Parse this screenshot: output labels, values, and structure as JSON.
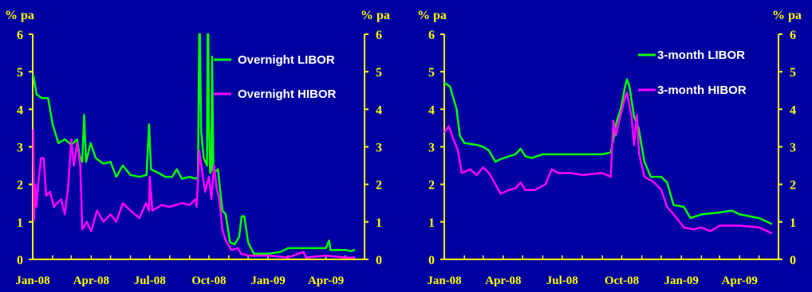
{
  "colors": {
    "background": "#0000a0",
    "axis": "#ffff00",
    "tick_label": "#ffff00",
    "libor": "#00ff00",
    "hibor": "#ff00ff",
    "legend_text": "#ffffff"
  },
  "chart_data": [
    {
      "type": "line",
      "title": "",
      "ylabel_left": "% pa",
      "ylabel_right": "% pa",
      "ylim": [
        0,
        6
      ],
      "yticks": [
        0,
        1,
        2,
        3,
        4,
        5,
        6
      ],
      "x_range": [
        "2008-01-01",
        "2009-05-31"
      ],
      "xtick_labels": [
        "Jan-08",
        "Apr-08",
        "Jul-08",
        "Oct-08",
        "Jan-09",
        "Apr-09"
      ],
      "xtick_dates": [
        "2008-01-01",
        "2008-04-01",
        "2008-07-01",
        "2008-10-01",
        "2009-01-01",
        "2009-04-01"
      ],
      "grid": false,
      "legend_placement": "top-right",
      "series": [
        {
          "name": "Overnight LIBOR",
          "color": "#00ff00",
          "points": [
            [
              "2008-01-02",
              4.9
            ],
            [
              "2008-01-07",
              4.4
            ],
            [
              "2008-01-15",
              4.3
            ],
            [
              "2008-01-25",
              4.3
            ],
            [
              "2008-02-01",
              3.6
            ],
            [
              "2008-02-10",
              3.1
            ],
            [
              "2008-02-20",
              3.2
            ],
            [
              "2008-03-01",
              3.05
            ],
            [
              "2008-03-10",
              3.2
            ],
            [
              "2008-03-14",
              2.75
            ],
            [
              "2008-03-18",
              2.6
            ],
            [
              "2008-03-21",
              3.85
            ],
            [
              "2008-03-24",
              2.6
            ],
            [
              "2008-03-31",
              3.1
            ],
            [
              "2008-04-08",
              2.7
            ],
            [
              "2008-04-20",
              2.55
            ],
            [
              "2008-05-01",
              2.6
            ],
            [
              "2008-05-10",
              2.2
            ],
            [
              "2008-05-20",
              2.5
            ],
            [
              "2008-06-01",
              2.25
            ],
            [
              "2008-06-15",
              2.2
            ],
            [
              "2008-06-26",
              2.25
            ],
            [
              "2008-06-30",
              3.6
            ],
            [
              "2008-07-03",
              2.4
            ],
            [
              "2008-07-15",
              2.3
            ],
            [
              "2008-07-25",
              2.2
            ],
            [
              "2008-08-05",
              2.2
            ],
            [
              "2008-08-12",
              2.4
            ],
            [
              "2008-08-20",
              2.15
            ],
            [
              "2008-09-01",
              2.2
            ],
            [
              "2008-09-10",
              2.15
            ],
            [
              "2008-09-14",
              2.2
            ],
            [
              "2008-09-16",
              6.0
            ],
            [
              "2008-09-17",
              6.0
            ],
            [
              "2008-09-19",
              3.4
            ],
            [
              "2008-09-23",
              2.7
            ],
            [
              "2008-09-28",
              2.5
            ],
            [
              "2008-09-29",
              6.0
            ],
            [
              "2008-09-30",
              6.0
            ],
            [
              "2008-10-01",
              3.7
            ],
            [
              "2008-10-03",
              2.3
            ],
            [
              "2008-10-05",
              2.4
            ],
            [
              "2008-10-06",
              5.4
            ],
            [
              "2008-10-08",
              2.3
            ],
            [
              "2008-10-15",
              2.4
            ],
            [
              "2008-10-22",
              1.3
            ],
            [
              "2008-10-27",
              1.2
            ],
            [
              "2008-11-03",
              0.45
            ],
            [
              "2008-11-10",
              0.4
            ],
            [
              "2008-11-17",
              0.6
            ],
            [
              "2008-11-21",
              1.15
            ],
            [
              "2008-11-25",
              1.15
            ],
            [
              "2008-12-01",
              0.45
            ],
            [
              "2008-12-10",
              0.15
            ],
            [
              "2009-01-01",
              0.15
            ],
            [
              "2009-01-20",
              0.2
            ],
            [
              "2009-02-01",
              0.3
            ],
            [
              "2009-03-01",
              0.3
            ],
            [
              "2009-04-01",
              0.3
            ],
            [
              "2009-04-06",
              0.5
            ],
            [
              "2009-04-08",
              0.25
            ],
            [
              "2009-05-01",
              0.25
            ],
            [
              "2009-05-10",
              0.22
            ],
            [
              "2009-05-15",
              0.25
            ]
          ]
        },
        {
          "name": "Overnight HIBOR",
          "color": "#ff00ff",
          "points": [
            [
              "2008-01-02",
              3.45
            ],
            [
              "2008-01-03",
              1.05
            ],
            [
              "2008-01-05",
              2.0
            ],
            [
              "2008-01-07",
              1.4
            ],
            [
              "2008-01-10",
              2.1
            ],
            [
              "2008-01-14",
              2.7
            ],
            [
              "2008-01-18",
              2.7
            ],
            [
              "2008-01-22",
              1.7
            ],
            [
              "2008-01-28",
              1.8
            ],
            [
              "2008-02-03",
              1.4
            ],
            [
              "2008-02-08",
              1.5
            ],
            [
              "2008-02-14",
              1.6
            ],
            [
              "2008-02-20",
              1.2
            ],
            [
              "2008-02-25",
              1.9
            ],
            [
              "2008-03-01",
              3.2
            ],
            [
              "2008-03-05",
              2.5
            ],
            [
              "2008-03-10",
              3.1
            ],
            [
              "2008-03-15",
              2.5
            ],
            [
              "2008-03-18",
              0.8
            ],
            [
              "2008-03-25",
              1.0
            ],
            [
              "2008-04-01",
              0.75
            ],
            [
              "2008-04-10",
              1.3
            ],
            [
              "2008-04-20",
              1.0
            ],
            [
              "2008-05-01",
              1.2
            ],
            [
              "2008-05-10",
              1.0
            ],
            [
              "2008-05-20",
              1.5
            ],
            [
              "2008-06-01",
              1.3
            ],
            [
              "2008-06-15",
              1.1
            ],
            [
              "2008-06-25",
              1.5
            ],
            [
              "2008-06-30",
              1.3
            ],
            [
              "2008-07-01",
              2.2
            ],
            [
              "2008-07-05",
              1.3
            ],
            [
              "2008-07-20",
              1.45
            ],
            [
              "2008-08-01",
              1.4
            ],
            [
              "2008-08-20",
              1.5
            ],
            [
              "2008-09-01",
              1.45
            ],
            [
              "2008-09-10",
              1.6
            ],
            [
              "2008-09-12",
              1.4
            ],
            [
              "2008-09-16",
              2.9
            ],
            [
              "2008-09-20",
              2.4
            ],
            [
              "2008-09-25",
              1.8
            ],
            [
              "2008-10-01",
              2.2
            ],
            [
              "2008-10-05",
              1.6
            ],
            [
              "2008-10-09",
              2.5
            ],
            [
              "2008-10-13",
              1.9
            ],
            [
              "2008-10-17",
              1.6
            ],
            [
              "2008-10-22",
              0.8
            ],
            [
              "2008-10-27",
              0.5
            ],
            [
              "2008-11-05",
              0.25
            ],
            [
              "2008-11-15",
              0.3
            ],
            [
              "2008-11-20",
              0.15
            ],
            [
              "2008-12-01",
              0.1
            ],
            [
              "2008-12-10",
              0.1
            ],
            [
              "2009-01-01",
              0.1
            ],
            [
              "2009-02-01",
              0.05
            ],
            [
              "2009-02-25",
              0.2
            ],
            [
              "2009-03-01",
              0.05
            ],
            [
              "2009-04-01",
              0.1
            ],
            [
              "2009-05-01",
              0.05
            ],
            [
              "2009-05-15",
              0.05
            ]
          ]
        }
      ]
    },
    {
      "type": "line",
      "title": "",
      "ylabel_left": "% pa",
      "ylabel_right": "% pa",
      "ylim": [
        0,
        6
      ],
      "yticks": [
        0,
        1,
        2,
        3,
        4,
        5,
        6
      ],
      "x_range": [
        "2008-01-01",
        "2009-05-31"
      ],
      "xtick_labels": [
        "Jan-08",
        "Apr-08",
        "Jul-08",
        "Oct-08",
        "Jan-09",
        "Apr-09"
      ],
      "xtick_dates": [
        "2008-01-01",
        "2008-04-01",
        "2008-07-01",
        "2008-10-01",
        "2009-01-01",
        "2009-04-01"
      ],
      "grid": false,
      "legend_placement": "top-right",
      "series": [
        {
          "name": "3-month LIBOR",
          "color": "#00ff00",
          "points": [
            [
              "2008-01-02",
              4.7
            ],
            [
              "2008-01-10",
              4.6
            ],
            [
              "2008-01-20",
              4.0
            ],
            [
              "2008-01-25",
              3.3
            ],
            [
              "2008-02-01",
              3.1
            ],
            [
              "2008-02-20",
              3.05
            ],
            [
              "2008-03-01",
              3.0
            ],
            [
              "2008-03-10",
              2.9
            ],
            [
              "2008-03-20",
              2.6
            ],
            [
              "2008-03-25",
              2.65
            ],
            [
              "2008-04-10",
              2.75
            ],
            [
              "2008-04-20",
              2.8
            ],
            [
              "2008-04-28",
              2.95
            ],
            [
              "2008-05-05",
              2.75
            ],
            [
              "2008-05-15",
              2.7
            ],
            [
              "2008-06-01",
              2.8
            ],
            [
              "2008-06-15",
              2.8
            ],
            [
              "2008-07-01",
              2.8
            ],
            [
              "2008-08-01",
              2.8
            ],
            [
              "2008-09-01",
              2.8
            ],
            [
              "2008-09-14",
              2.85
            ],
            [
              "2008-09-18",
              3.2
            ],
            [
              "2008-09-22",
              3.6
            ],
            [
              "2008-09-30",
              4.05
            ],
            [
              "2008-10-06",
              4.6
            ],
            [
              "2008-10-09",
              4.8
            ],
            [
              "2008-10-13",
              4.6
            ],
            [
              "2008-10-20",
              3.8
            ],
            [
              "2008-10-27",
              3.5
            ],
            [
              "2008-11-05",
              2.6
            ],
            [
              "2008-11-15",
              2.2
            ],
            [
              "2008-12-01",
              2.2
            ],
            [
              "2008-12-10",
              2.05
            ],
            [
              "2008-12-20",
              1.45
            ],
            [
              "2009-01-05",
              1.4
            ],
            [
              "2009-01-15",
              1.1
            ],
            [
              "2009-02-01",
              1.2
            ],
            [
              "2009-03-01",
              1.25
            ],
            [
              "2009-03-20",
              1.3
            ],
            [
              "2009-04-01",
              1.2
            ],
            [
              "2009-05-01",
              1.1
            ],
            [
              "2009-05-20",
              0.95
            ]
          ]
        },
        {
          "name": "3-month HIBOR",
          "color": "#ff00ff",
          "points": [
            [
              "2008-01-02",
              3.4
            ],
            [
              "2008-01-08",
              3.55
            ],
            [
              "2008-01-15",
              3.2
            ],
            [
              "2008-01-22",
              2.9
            ],
            [
              "2008-01-28",
              2.3
            ],
            [
              "2008-02-10",
              2.4
            ],
            [
              "2008-02-20",
              2.25
            ],
            [
              "2008-03-01",
              2.45
            ],
            [
              "2008-03-10",
              2.3
            ],
            [
              "2008-03-20",
              2.0
            ],
            [
              "2008-03-28",
              1.75
            ],
            [
              "2008-04-10",
              1.85
            ],
            [
              "2008-04-20",
              1.9
            ],
            [
              "2008-04-28",
              2.05
            ],
            [
              "2008-05-05",
              1.85
            ],
            [
              "2008-05-20",
              1.85
            ],
            [
              "2008-06-05",
              2.0
            ],
            [
              "2008-06-15",
              2.4
            ],
            [
              "2008-06-25",
              2.3
            ],
            [
              "2008-07-15",
              2.3
            ],
            [
              "2008-08-01",
              2.25
            ],
            [
              "2008-09-01",
              2.3
            ],
            [
              "2008-09-14",
              2.2
            ],
            [
              "2008-09-18",
              3.7
            ],
            [
              "2008-09-22",
              3.3
            ],
            [
              "2008-09-30",
              3.9
            ],
            [
              "2008-10-06",
              4.3
            ],
            [
              "2008-10-09",
              4.45
            ],
            [
              "2008-10-16",
              3.8
            ],
            [
              "2008-10-20",
              3.05
            ],
            [
              "2008-10-24",
              3.85
            ],
            [
              "2008-10-28",
              2.8
            ],
            [
              "2008-11-05",
              2.2
            ],
            [
              "2008-11-20",
              2.05
            ],
            [
              "2008-12-01",
              1.85
            ],
            [
              "2008-12-10",
              1.4
            ],
            [
              "2008-12-20",
              1.2
            ],
            [
              "2009-01-05",
              0.85
            ],
            [
              "2009-01-20",
              0.8
            ],
            [
              "2009-02-01",
              0.85
            ],
            [
              "2009-02-15",
              0.75
            ],
            [
              "2009-03-01",
              0.9
            ],
            [
              "2009-04-01",
              0.9
            ],
            [
              "2009-05-01",
              0.85
            ],
            [
              "2009-05-20",
              0.7
            ]
          ]
        }
      ]
    }
  ]
}
